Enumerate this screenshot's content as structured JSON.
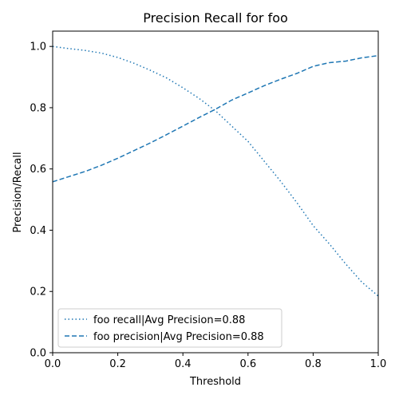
{
  "chart_data": {
    "type": "line",
    "title": "Precision Recall for foo",
    "xlabel": "Threshold",
    "ylabel": "Precision/Recall",
    "xlim": [
      0,
      1
    ],
    "ylim": [
      0,
      1.05
    ],
    "x_ticks": [
      "0.0",
      "0.2",
      "0.4",
      "0.6",
      "0.8",
      "1.0"
    ],
    "y_ticks": [
      "0.0",
      "0.2",
      "0.4",
      "0.6",
      "0.8",
      "1.0"
    ],
    "grid": false,
    "legend_position": "lower-left",
    "series": [
      {
        "name": "foo recall|Avg Precision=0.88",
        "style": "dotted",
        "color": "#1f77b4",
        "points": [
          [
            0.0,
            1.0
          ],
          [
            0.05,
            0.993
          ],
          [
            0.1,
            0.987
          ],
          [
            0.15,
            0.978
          ],
          [
            0.2,
            0.964
          ],
          [
            0.25,
            0.945
          ],
          [
            0.3,
            0.922
          ],
          [
            0.35,
            0.897
          ],
          [
            0.4,
            0.865
          ],
          [
            0.45,
            0.83
          ],
          [
            0.5,
            0.79
          ],
          [
            0.55,
            0.74
          ],
          [
            0.6,
            0.69
          ],
          [
            0.65,
            0.625
          ],
          [
            0.7,
            0.56
          ],
          [
            0.75,
            0.49
          ],
          [
            0.8,
            0.415
          ],
          [
            0.85,
            0.355
          ],
          [
            0.9,
            0.29
          ],
          [
            0.95,
            0.23
          ],
          [
            1.0,
            0.185
          ]
        ]
      },
      {
        "name": "foo precision|Avg Precision=0.88",
        "style": "dashed",
        "color": "#1f77b4",
        "points": [
          [
            0.0,
            0.558
          ],
          [
            0.05,
            0.575
          ],
          [
            0.1,
            0.592
          ],
          [
            0.15,
            0.612
          ],
          [
            0.2,
            0.635
          ],
          [
            0.25,
            0.66
          ],
          [
            0.3,
            0.685
          ],
          [
            0.35,
            0.712
          ],
          [
            0.4,
            0.74
          ],
          [
            0.45,
            0.768
          ],
          [
            0.5,
            0.795
          ],
          [
            0.55,
            0.825
          ],
          [
            0.6,
            0.848
          ],
          [
            0.65,
            0.872
          ],
          [
            0.7,
            0.893
          ],
          [
            0.75,
            0.912
          ],
          [
            0.8,
            0.935
          ],
          [
            0.85,
            0.947
          ],
          [
            0.9,
            0.952
          ],
          [
            0.95,
            0.963
          ],
          [
            1.0,
            0.97
          ]
        ]
      }
    ]
  }
}
